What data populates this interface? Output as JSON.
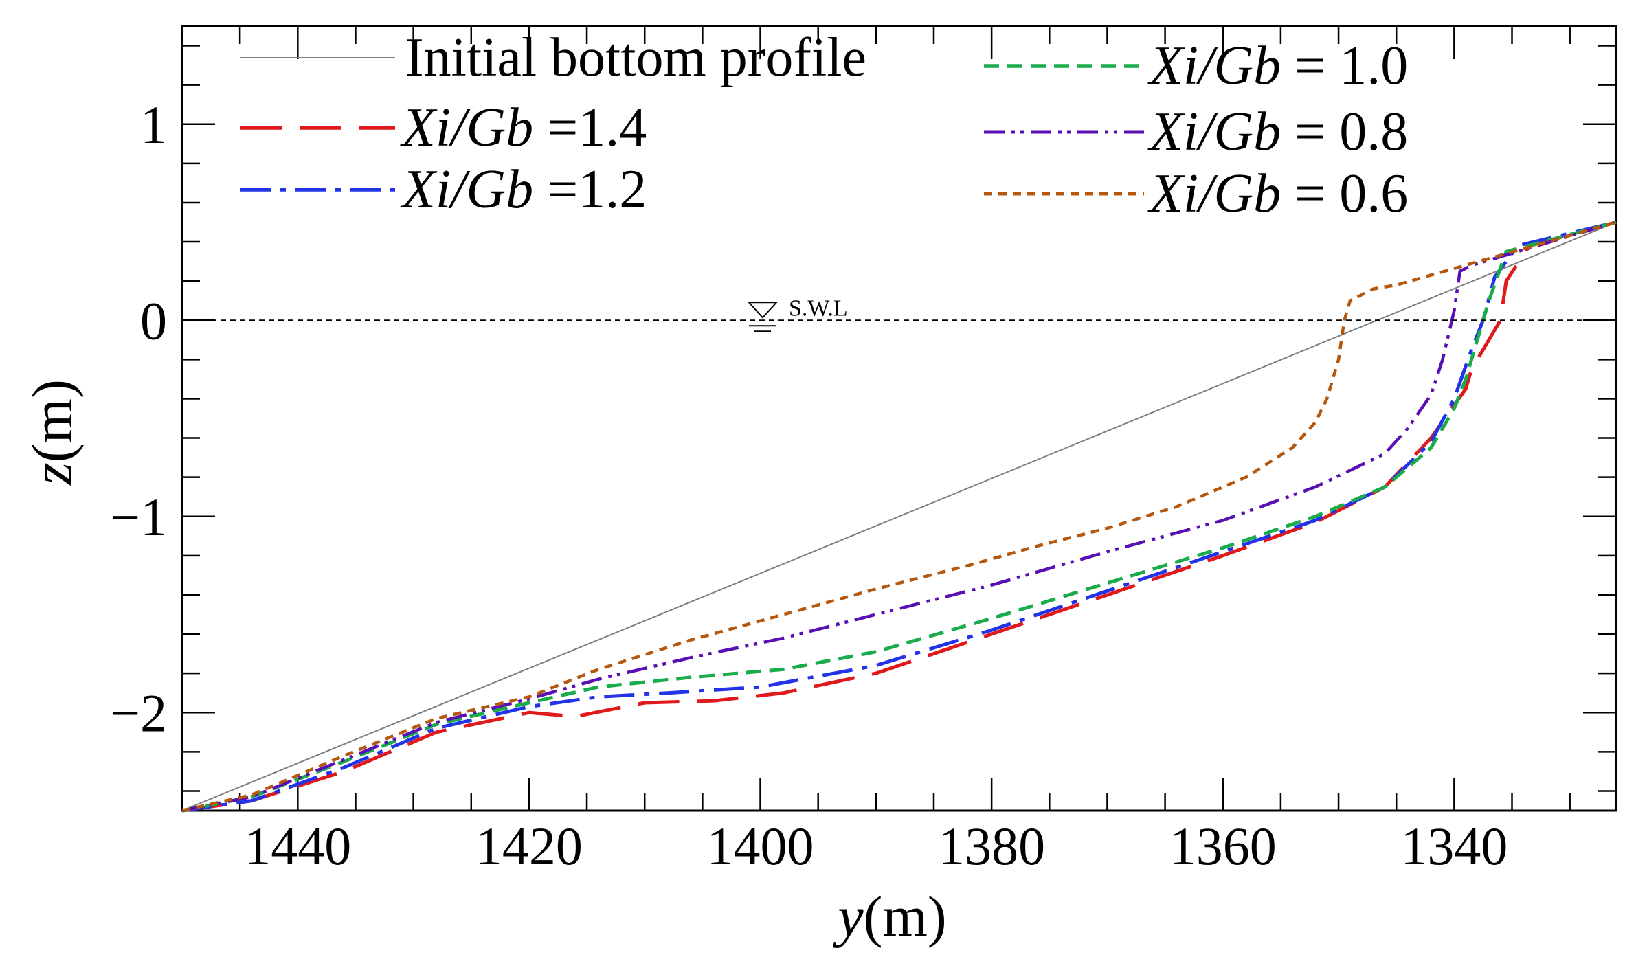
{
  "chart_data": {
    "type": "line",
    "title": "",
    "xlabel": {
      "var": "y",
      "unit": "(m)"
    },
    "ylabel": {
      "var": "z",
      "unit": "(m)"
    },
    "xlim": [
      1450,
      1326
    ],
    "ylim": [
      -2.5,
      1.5
    ],
    "x_reversed": true,
    "grid": false,
    "legend_position": "top",
    "x_ticks": [
      1440,
      1420,
      1400,
      1380,
      1360,
      1340
    ],
    "x_tick_labels": [
      "1440",
      "1420",
      "1400",
      "1380",
      "1360",
      "1340"
    ],
    "y_ticks": [
      -2,
      -1,
      0,
      1
    ],
    "y_tick_labels": [
      "−2",
      "−1",
      "0",
      "1"
    ],
    "swl": {
      "z": 0,
      "label": "S.W.L"
    },
    "series": [
      {
        "name": "Initial bottom profile",
        "legend_var": "",
        "legend_value": "",
        "color": "#7f7f7f",
        "dash": "solid",
        "x": [
          1450,
          1326
        ],
        "y": [
          -2.5,
          0.5
        ]
      },
      {
        "name": "Xi/Gb =1.4",
        "legend_var": "Xi/Gb",
        "legend_value": " =1.4",
        "color": "#e0191b",
        "dash": "longdash",
        "x": [
          1450,
          1444,
          1436,
          1428,
          1420,
          1416,
          1410,
          1404,
          1398,
          1390,
          1380,
          1370,
          1360,
          1352,
          1346,
          1342,
          1339,
          1338.5,
          1336,
          1335.5,
          1333.5,
          1326
        ],
        "y": [
          -2.5,
          -2.45,
          -2.3,
          -2.1,
          -2.0,
          -2.02,
          -1.95,
          -1.94,
          -1.9,
          -1.8,
          -1.6,
          -1.4,
          -1.2,
          -1.03,
          -0.85,
          -0.6,
          -0.35,
          -0.25,
          0.0,
          0.2,
          0.38,
          0.5
        ]
      },
      {
        "name": "Xi/Gb =1.2",
        "legend_var": "Xi/Gb",
        "legend_value": " =1.2",
        "color": "#2233e8",
        "dash": "dashdot",
        "x": [
          1450,
          1444,
          1436,
          1428,
          1420,
          1414,
          1408,
          1400,
          1390,
          1380,
          1370,
          1360,
          1352,
          1346,
          1342,
          1340,
          1338.5,
          1337.5,
          1336.5,
          1334.5,
          1326
        ],
        "y": [
          -2.5,
          -2.45,
          -2.28,
          -2.08,
          -1.97,
          -1.92,
          -1.9,
          -1.87,
          -1.76,
          -1.58,
          -1.38,
          -1.18,
          -1.02,
          -0.85,
          -0.62,
          -0.4,
          -0.15,
          0.0,
          0.22,
          0.38,
          0.5
        ]
      },
      {
        "name": "Xi/Gb = 1.0",
        "legend_var": "Xi/Gb",
        "legend_value": " = 1.0",
        "color": "#1aab4b",
        "dash": "dash",
        "x": [
          1450,
          1444,
          1436,
          1428,
          1420,
          1414,
          1406,
          1398,
          1390,
          1380,
          1370,
          1360,
          1352,
          1346,
          1342,
          1340,
          1339,
          1338,
          1337,
          1335.5,
          1326
        ],
        "y": [
          -2.5,
          -2.43,
          -2.25,
          -2.06,
          -1.95,
          -1.87,
          -1.82,
          -1.78,
          -1.69,
          -1.52,
          -1.34,
          -1.16,
          -1.0,
          -0.85,
          -0.65,
          -0.45,
          -0.3,
          -0.1,
          0.1,
          0.35,
          0.5
        ]
      },
      {
        "name": "Xi/Gb = 0.8",
        "legend_var": "Xi/Gb",
        "legend_value": " = 0.8",
        "color": "#5a0fb4",
        "dash": "dashdotdot",
        "x": [
          1450,
          1444,
          1436,
          1428,
          1420,
          1414,
          1406,
          1398,
          1390,
          1380,
          1370,
          1360,
          1352,
          1346,
          1344,
          1342,
          1341,
          1340,
          1339.5,
          1338.5,
          1326
        ],
        "y": [
          -2.5,
          -2.43,
          -2.24,
          -2.05,
          -1.93,
          -1.83,
          -1.72,
          -1.62,
          -1.5,
          -1.35,
          -1.18,
          -1.02,
          -0.85,
          -0.68,
          -0.55,
          -0.38,
          -0.2,
          0.05,
          0.25,
          0.28,
          0.5
        ]
      },
      {
        "name": "Xi/Gb = 0.6",
        "legend_var": "Xi/Gb",
        "legend_value": " = 0.6",
        "color": "#b4580f",
        "dash": "shortdash",
        "x": [
          1450,
          1444,
          1436,
          1428,
          1420,
          1414,
          1406,
          1398,
          1390,
          1382,
          1376,
          1370,
          1364,
          1358,
          1354,
          1352,
          1351,
          1350,
          1349.5,
          1349,
          1347,
          1345,
          1326
        ],
        "y": [
          -2.5,
          -2.42,
          -2.22,
          -2.03,
          -1.92,
          -1.78,
          -1.63,
          -1.5,
          -1.37,
          -1.25,
          -1.15,
          -1.06,
          -0.95,
          -0.8,
          -0.65,
          -0.52,
          -0.4,
          -0.2,
          0.0,
          0.1,
          0.16,
          0.18,
          0.5
        ]
      }
    ]
  }
}
